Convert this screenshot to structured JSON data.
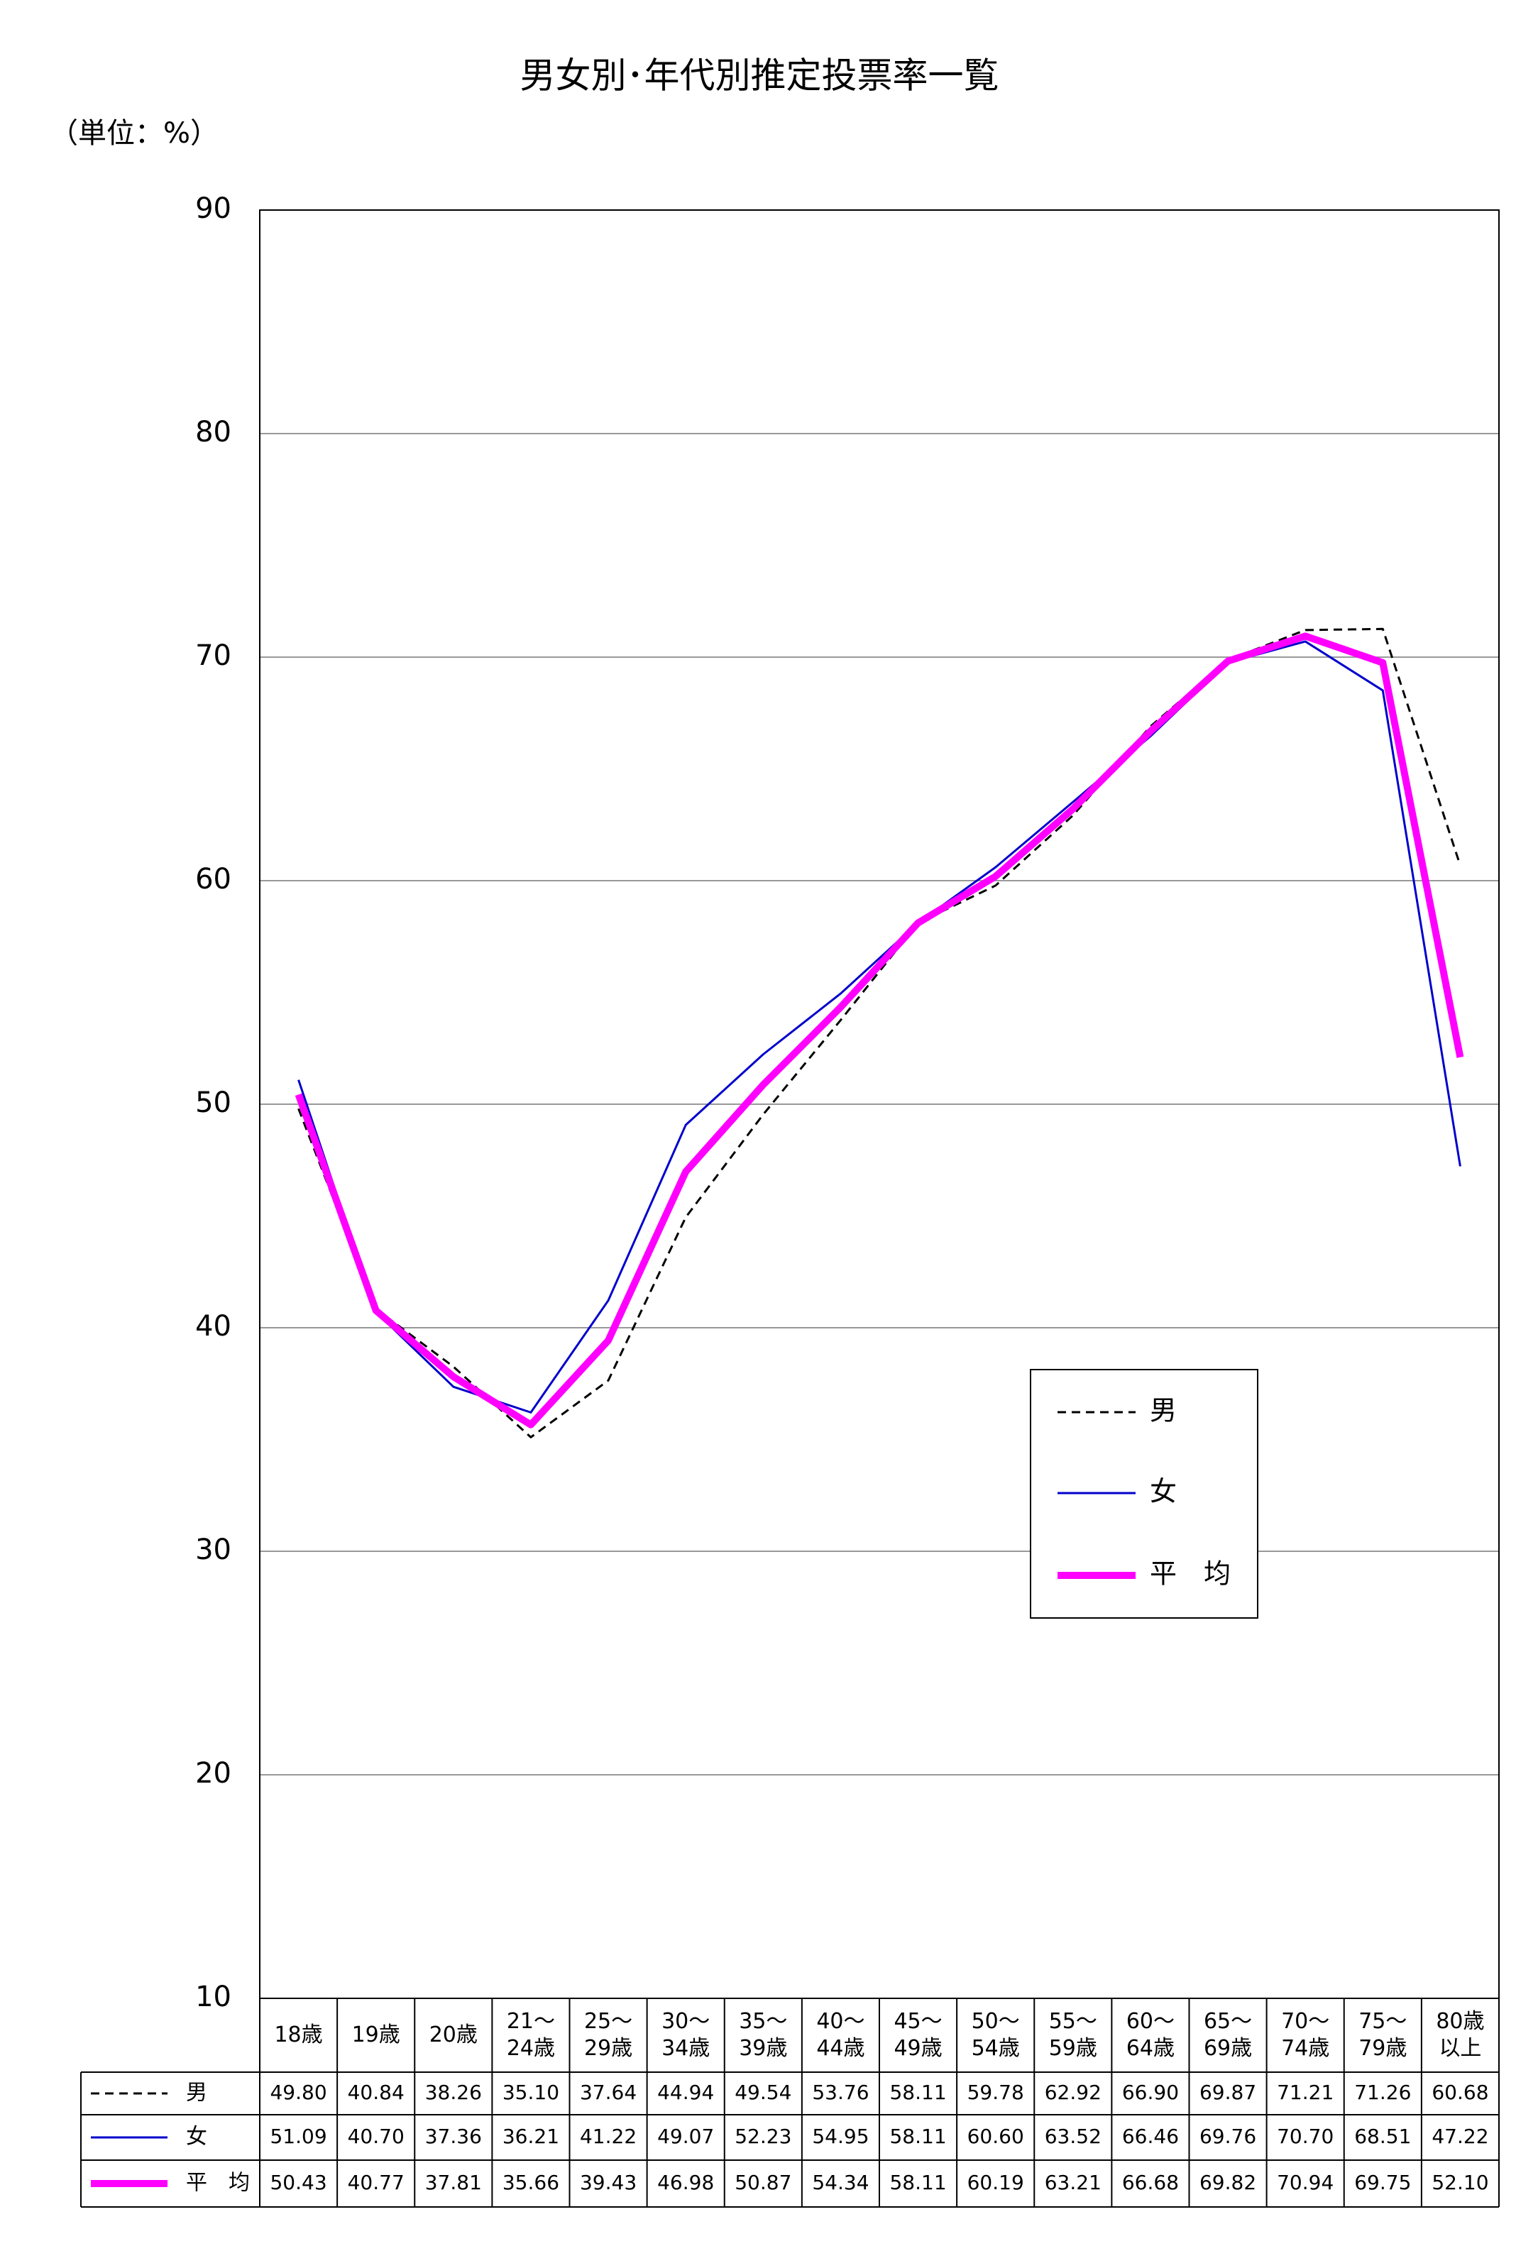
{
  "chart_data": {
    "type": "line",
    "title": "男女別･年代別推定投票率一覧",
    "unit_label": "（単位：%）",
    "categories": [
      "18歳",
      "19歳",
      "20歳",
      "21～\n24歳",
      "25～\n29歳",
      "30～\n34歳",
      "35～\n39歳",
      "40～\n44歳",
      "45～\n49歳",
      "50～\n54歳",
      "55～\n59歳",
      "60～\n64歳",
      "65～\n69歳",
      "70～\n74歳",
      "75～\n79歳",
      "80歳\n以上"
    ],
    "series": [
      {
        "name": "男",
        "color": "#000000",
        "dash": true,
        "width": 3,
        "values": [
          49.8,
          40.84,
          38.26,
          35.1,
          37.64,
          44.94,
          49.54,
          53.76,
          58.11,
          59.78,
          62.92,
          66.9,
          69.87,
          71.21,
          71.26,
          60.68
        ],
        "value_labels": [
          "49.80",
          "40.84",
          "38.26",
          "35.10",
          "37.64",
          "44.94",
          "49.54",
          "53.76",
          "58.11",
          "59.78",
          "62.92",
          "66.90",
          "69.87",
          "71.21",
          "71.26",
          "60.68"
        ]
      },
      {
        "name": "女",
        "color": "#0000cc",
        "dash": false,
        "width": 3,
        "values": [
          51.09,
          40.7,
          37.36,
          36.21,
          41.22,
          49.07,
          52.23,
          54.95,
          58.11,
          60.6,
          63.52,
          66.46,
          69.76,
          70.7,
          68.51,
          47.22
        ],
        "value_labels": [
          "51.09",
          "40.70",
          "37.36",
          "36.21",
          "41.22",
          "49.07",
          "52.23",
          "54.95",
          "58.11",
          "60.60",
          "63.52",
          "66.46",
          "69.76",
          "70.70",
          "68.51",
          "47.22"
        ]
      },
      {
        "name": "平　均",
        "color": "#ff00ff",
        "dash": false,
        "width": 10,
        "values": [
          50.43,
          40.77,
          37.81,
          35.66,
          39.43,
          46.98,
          50.87,
          54.34,
          58.11,
          60.19,
          63.21,
          66.68,
          69.82,
          70.94,
          69.75,
          52.1
        ],
        "value_labels": [
          "50.43",
          "40.77",
          "37.81",
          "35.66",
          "39.43",
          "46.98",
          "50.87",
          "54.34",
          "58.11",
          "60.19",
          "63.21",
          "66.68",
          "69.82",
          "70.94",
          "69.75",
          "52.10"
        ]
      }
    ],
    "ylim": [
      10,
      90
    ],
    "yticks": [
      10,
      20,
      30,
      40,
      50,
      60,
      70,
      80,
      90
    ],
    "grid": true
  }
}
